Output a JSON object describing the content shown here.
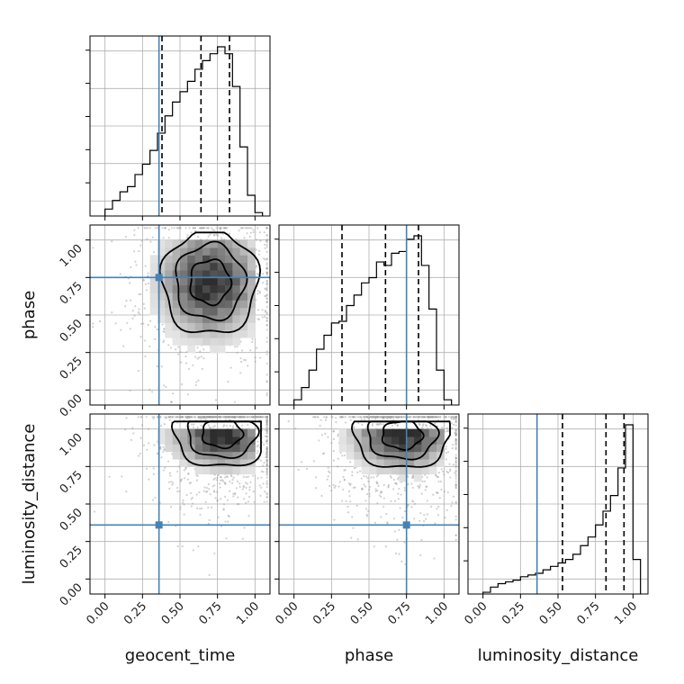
{
  "chart_data": {
    "type": "corner",
    "parameters": [
      "geocent_time",
      "phase",
      "luminosity_distance"
    ],
    "axis_range": [
      -0.1,
      1.1
    ],
    "ticks": [
      0.0,
      0.25,
      0.5,
      0.75,
      1.0
    ],
    "tick_labels": [
      "0.00",
      "0.25",
      "0.50",
      "0.75",
      "1.00"
    ],
    "truth_color": "#4682b4",
    "truths": {
      "geocent_time": 0.36,
      "phase": 0.75,
      "luminosity_distance": 0.36
    },
    "quantiles": {
      "geocent_time": [
        0.38,
        0.64,
        0.83
      ],
      "phase": [
        0.32,
        0.61,
        0.83
      ],
      "luminosity_distance": [
        0.53,
        0.82,
        0.94
      ]
    },
    "histograms": {
      "geocent_time": {
        "bin_edges": [
          0.0,
          0.05,
          0.1,
          0.15,
          0.2,
          0.25,
          0.3,
          0.35,
          0.4,
          0.45,
          0.5,
          0.55,
          0.6,
          0.65,
          0.7,
          0.75,
          0.8,
          0.85,
          0.9,
          0.95,
          1.0,
          1.05
        ],
        "counts": [
          4,
          9,
          14,
          17,
          24,
          30,
          38,
          48,
          58,
          66,
          72,
          78,
          85,
          90,
          94,
          98,
          94,
          75,
          40,
          12,
          2
        ]
      },
      "phase": {
        "bin_edges": [
          0.0,
          0.05,
          0.1,
          0.15,
          0.2,
          0.25,
          0.3,
          0.35,
          0.4,
          0.45,
          0.5,
          0.55,
          0.6,
          0.65,
          0.7,
          0.75,
          0.8,
          0.85,
          0.9,
          0.95,
          1.0,
          1.05
        ],
        "counts": [
          3,
          10,
          20,
          32,
          40,
          47,
          48,
          57,
          63,
          70,
          73,
          82,
          80,
          87,
          88,
          95,
          97,
          80,
          55,
          20,
          3
        ]
      },
      "luminosity_distance": {
        "bin_edges": [
          0.0,
          0.05,
          0.1,
          0.15,
          0.2,
          0.25,
          0.3,
          0.35,
          0.4,
          0.45,
          0.5,
          0.55,
          0.6,
          0.65,
          0.7,
          0.75,
          0.8,
          0.85,
          0.9,
          0.95,
          1.0,
          1.05
        ],
        "counts": [
          1,
          4,
          6,
          7,
          8,
          10,
          11,
          12,
          14,
          16,
          18,
          20,
          23,
          28,
          33,
          40,
          48,
          57,
          73,
          98,
          20
        ]
      }
    },
    "pairs": [
      {
        "x": "geocent_time",
        "y": "phase",
        "mode": {
          "x": 0.7,
          "y": 0.72
        }
      },
      {
        "x": "geocent_time",
        "y": "luminosity_distance",
        "mode": {
          "x": 0.78,
          "y": 0.97
        }
      },
      {
        "x": "phase",
        "y": "luminosity_distance",
        "mode": {
          "x": 0.72,
          "y": 0.96
        }
      }
    ]
  }
}
